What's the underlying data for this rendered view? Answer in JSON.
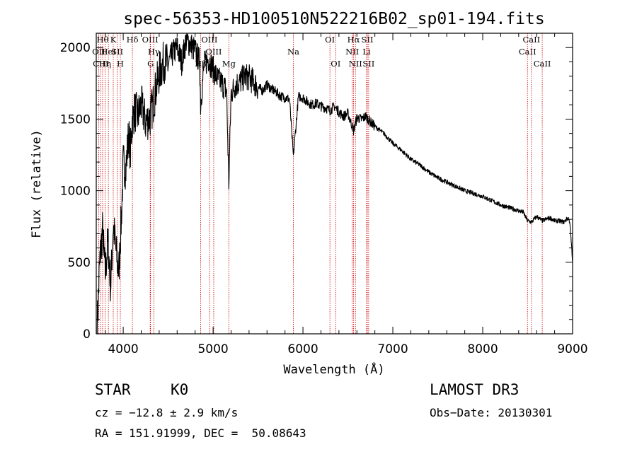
{
  "chart_data": {
    "type": "line",
    "title": "spec-56353-HD100510N522216B02_sp01-194.fits",
    "xlabel": "Wavelength (Å)",
    "ylabel": "Flux (relative)",
    "xlim": [
      3700,
      9000
    ],
    "ylim": [
      0,
      2100
    ],
    "xticks": [
      4000,
      5000,
      6000,
      7000,
      8000,
      9000
    ],
    "yticks": [
      0,
      500,
      1000,
      1500,
      2000
    ],
    "grid": false,
    "series": [
      {
        "name": "Flux",
        "x": [
          3710,
          3740,
          3770,
          3800,
          3830,
          3860,
          3890,
          3920,
          3950,
          3980,
          4000,
          4030,
          4060,
          4080,
          4100,
          4130,
          4160,
          4200,
          4250,
          4300,
          4330,
          4360,
          4400,
          4450,
          4500,
          4550,
          4600,
          4650,
          4700,
          4750,
          4800,
          4850,
          4861,
          4900,
          4950,
          5000,
          5050,
          5100,
          5150,
          5175,
          5200,
          5250,
          5300,
          5350,
          5400,
          5450,
          5500,
          5550,
          5600,
          5650,
          5700,
          5750,
          5800,
          5850,
          5893,
          5950,
          6000,
          6050,
          6100,
          6150,
          6200,
          6250,
          6300,
          6350,
          6400,
          6450,
          6500,
          6563,
          6600,
          6650,
          6700,
          6750,
          6800,
          6900,
          7000,
          7100,
          7200,
          7300,
          7400,
          7500,
          7600,
          7700,
          7800,
          7900,
          8000,
          8100,
          8200,
          8300,
          8400,
          8450,
          8498,
          8542,
          8600,
          8662,
          8700,
          8750,
          8800,
          8850,
          8900,
          8950,
          8970,
          9000
        ],
        "y": [
          60,
          520,
          720,
          420,
          650,
          330,
          760,
          580,
          420,
          820,
          1200,
          1150,
          1400,
          1260,
          1500,
          1560,
          1520,
          1600,
          1480,
          1520,
          1600,
          1700,
          1820,
          1900,
          1880,
          1960,
          2000,
          1900,
          2050,
          2020,
          1980,
          1900,
          1600,
          1880,
          1920,
          1850,
          1780,
          1750,
          1700,
          1050,
          1680,
          1740,
          1760,
          1800,
          1790,
          1760,
          1720,
          1700,
          1740,
          1710,
          1690,
          1660,
          1650,
          1640,
          1240,
          1660,
          1650,
          1620,
          1600,
          1610,
          1590,
          1580,
          1560,
          1590,
          1550,
          1520,
          1540,
          1420,
          1510,
          1500,
          1520,
          1480,
          1450,
          1400,
          1330,
          1280,
          1220,
          1180,
          1130,
          1090,
          1060,
          1030,
          1000,
          980,
          960,
          930,
          900,
          880,
          860,
          850,
          790,
          780,
          820,
          790,
          800,
          810,
          790,
          790,
          780,
          810,
          780,
          500
        ]
      }
    ],
    "line_markers": [
      {
        "wavelength": 3727,
        "label": "OII",
        "row": 1
      },
      {
        "wavelength": 3750,
        "label": "CIII",
        "row": 2
      },
      {
        "wavelength": 3771,
        "label": "Hθ",
        "row": 0
      },
      {
        "wavelength": 3798,
        "label": "Hη",
        "row": 2
      },
      {
        "wavelength": 3835,
        "label": "HeI",
        "row": 1
      },
      {
        "wavelength": 3889,
        "label": "K",
        "row": 0
      },
      {
        "wavelength": 3934,
        "label": "SII",
        "row": 1
      },
      {
        "wavelength": 3968,
        "label": "H",
        "row": 2
      },
      {
        "wavelength": 4102,
        "label": "Hδ",
        "row": 0
      },
      {
        "wavelength": 4300,
        "label": "OIII",
        "row": 0
      },
      {
        "wavelength": 4304,
        "label": "G",
        "row": 2
      },
      {
        "wavelength": 4340,
        "label": "Hγ",
        "row": 1
      },
      {
        "wavelength": 4861,
        "label": "Hβ",
        "row": 2
      },
      {
        "wavelength": 4959,
        "label": "OIII",
        "row": 0
      },
      {
        "wavelength": 5007,
        "label": "OIII",
        "row": 1
      },
      {
        "wavelength": 5175,
        "label": "Mg",
        "row": 2
      },
      {
        "wavelength": 5893,
        "label": "Na",
        "row": 1
      },
      {
        "wavelength": 6300,
        "label": "OI",
        "row": 0
      },
      {
        "wavelength": 6364,
        "label": "OI",
        "row": 2
      },
      {
        "wavelength": 6548,
        "label": "NII",
        "row": 1
      },
      {
        "wavelength": 6563,
        "label": "Hα",
        "row": 0
      },
      {
        "wavelength": 6584,
        "label": "NII",
        "row": 2
      },
      {
        "wavelength": 6708,
        "label": "Li",
        "row": 1
      },
      {
        "wavelength": 6716,
        "label": "SII",
        "row": 0
      },
      {
        "wavelength": 6731,
        "label": "SII",
        "row": 2
      },
      {
        "wavelength": 8498,
        "label": "CaII",
        "row": 1
      },
      {
        "wavelength": 8542,
        "label": "CaII",
        "row": 0
      },
      {
        "wavelength": 8662,
        "label": "CaII",
        "row": 2
      }
    ]
  },
  "info": {
    "object_class": "STAR",
    "subclass": "K0",
    "survey": "LAMOST DR3",
    "cz": "cz = −12.8 ± 2.9 km/s",
    "obs_date": "Obs−Date: 20130301",
    "coords": "RA = 151.91999, DEC =  50.08643"
  },
  "colors": {
    "spectrum": "#000000",
    "line_marker": "#cc0000",
    "axes": "#000000"
  }
}
